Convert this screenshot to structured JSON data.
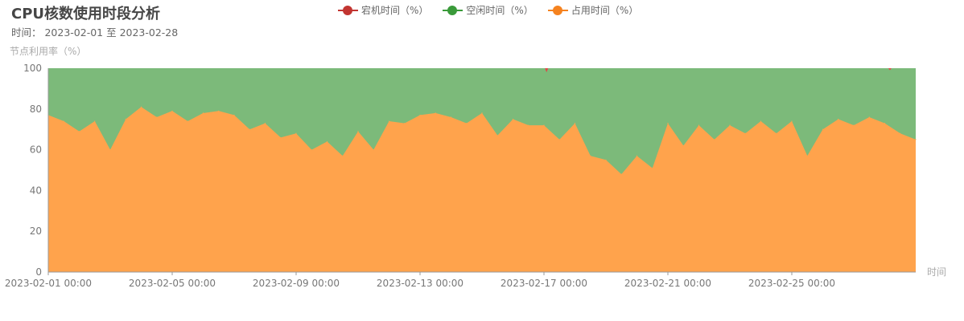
{
  "title": "CPU核数使用时段分析",
  "subtitle": "时间：  2023-02-01 至 2023-02-28",
  "chart_data": {
    "type": "area",
    "stacked": true,
    "ylabel": "节点利用率（%）",
    "xlabel": "时间",
    "ylim": [
      0,
      100
    ],
    "yticks": [
      0,
      20,
      40,
      60,
      80,
      100
    ],
    "xlim": [
      "2023-02-01 00:00",
      "2023-03-01 00:00"
    ],
    "xticks": [
      "2023-02-01 00:00",
      "2023-02-05 00:00",
      "2023-02-09 00:00",
      "2023-02-13 00:00",
      "2023-02-17 00:00",
      "2023-02-21 00:00",
      "2023-02-25 00:00"
    ],
    "legend_position": "top-center",
    "series": [
      {
        "name": "宕机时间（%）",
        "color": "#c23531",
        "points": [
          [
            "2023-02-17 02:00",
            2
          ],
          [
            "2023-02-28 04:00",
            1
          ]
        ]
      },
      {
        "name": "空闲时间（%）",
        "color": "#3a9a3a",
        "note_stack": "remainder to 100"
      },
      {
        "name": "占用时间（%）",
        "color": "#f5821f",
        "x": [
          "2023-02-01 00:00",
          "2023-02-01 12:00",
          "2023-02-02 00:00",
          "2023-02-02 12:00",
          "2023-02-03 00:00",
          "2023-02-03 12:00",
          "2023-02-04 00:00",
          "2023-02-04 12:00",
          "2023-02-05 00:00",
          "2023-02-05 12:00",
          "2023-02-06 00:00",
          "2023-02-06 12:00",
          "2023-02-07 00:00",
          "2023-02-07 12:00",
          "2023-02-08 00:00",
          "2023-02-08 12:00",
          "2023-02-09 00:00",
          "2023-02-09 12:00",
          "2023-02-10 00:00",
          "2023-02-10 12:00",
          "2023-02-11 00:00",
          "2023-02-11 12:00",
          "2023-02-12 00:00",
          "2023-02-12 12:00",
          "2023-02-13 00:00",
          "2023-02-13 12:00",
          "2023-02-14 00:00",
          "2023-02-14 12:00",
          "2023-02-15 00:00",
          "2023-02-15 12:00",
          "2023-02-16 00:00",
          "2023-02-16 12:00",
          "2023-02-17 00:00",
          "2023-02-17 12:00",
          "2023-02-18 00:00",
          "2023-02-18 12:00",
          "2023-02-19 00:00",
          "2023-02-19 12:00",
          "2023-02-20 00:00",
          "2023-02-20 12:00",
          "2023-02-21 00:00",
          "2023-02-21 12:00",
          "2023-02-22 00:00",
          "2023-02-22 12:00",
          "2023-02-23 00:00",
          "2023-02-23 12:00",
          "2023-02-24 00:00",
          "2023-02-24 12:00",
          "2023-02-25 00:00",
          "2023-02-25 12:00",
          "2023-02-26 00:00",
          "2023-02-26 12:00",
          "2023-02-27 00:00",
          "2023-02-27 12:00",
          "2023-02-28 00:00",
          "2023-02-28 12:00",
          "2023-03-01 00:00"
        ],
        "values": [
          77,
          74,
          69,
          74,
          60,
          75,
          81,
          76,
          79,
          74,
          78,
          79,
          77,
          70,
          73,
          66,
          68,
          60,
          64,
          57,
          69,
          60,
          74,
          73,
          77,
          78,
          76,
          73,
          78,
          67,
          75,
          72,
          72,
          65,
          73,
          57,
          55,
          48,
          57,
          51,
          73,
          62,
          72,
          65,
          72,
          68,
          74,
          68,
          74,
          57,
          70,
          75,
          72,
          76,
          73,
          68,
          65
        ]
      }
    ]
  }
}
